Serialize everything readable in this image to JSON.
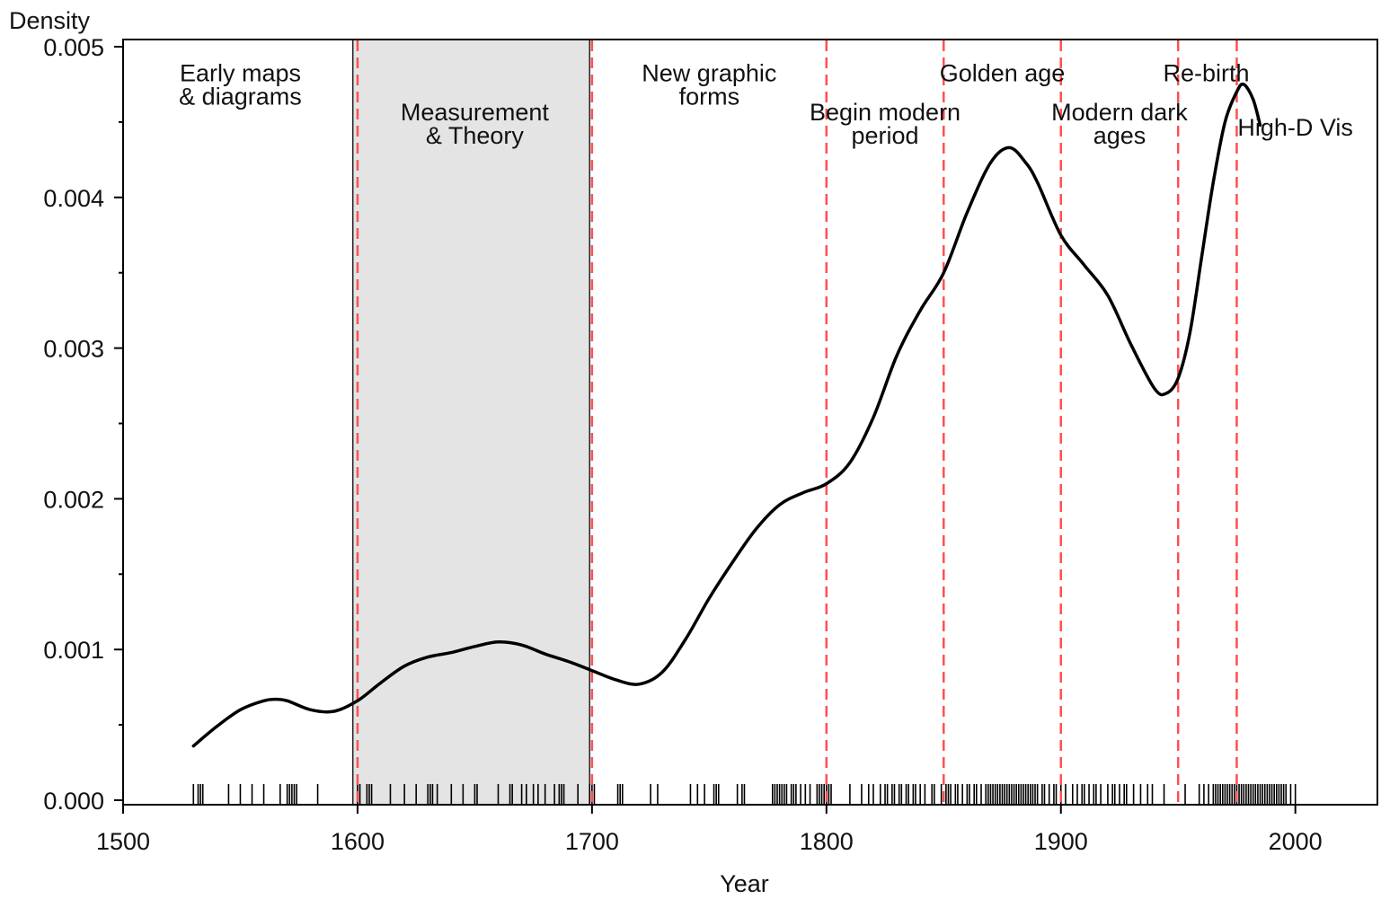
{
  "chart_data": {
    "type": "line",
    "xlabel": "Year",
    "ylabel": "Density",
    "xlim": [
      1500,
      2035
    ],
    "ylim": [
      0,
      0.005
    ],
    "x_ticks": [
      "1500",
      "1600",
      "1700",
      "1800",
      "1900",
      "2000"
    ],
    "x_tick_values": [
      1500,
      1600,
      1700,
      1800,
      1900,
      2000
    ],
    "y_ticks": [
      "0.000",
      "0.001",
      "0.002",
      "0.003",
      "0.004",
      "0.005"
    ],
    "y_tick_values": [
      0,
      0.001,
      0.002,
      0.003,
      0.004,
      0.005
    ],
    "y_minor_ticks": [
      0.0005,
      0.0015,
      0.0025,
      0.0035,
      0.0045
    ],
    "grid": false,
    "shaded_region": {
      "x_start": 1598,
      "x_end": 1699,
      "color": "#e4e4e4"
    },
    "period_boundaries": [
      1600,
      1700,
      1800,
      1850,
      1900,
      1950,
      1975
    ],
    "boundary_color": "#ff5050",
    "curve_color": "#000000",
    "period_labels": [
      {
        "lines": [
          "Early maps",
          "& diagrams"
        ],
        "x": 1550,
        "y": 0.00477
      },
      {
        "lines": [
          "Measurement",
          "& Theory"
        ],
        "x": 1650,
        "y": 0.00451
      },
      {
        "lines": [
          "New graphic",
          "forms"
        ],
        "x": 1750,
        "y": 0.00477
      },
      {
        "lines": [
          "Begin modern",
          "period"
        ],
        "x": 1825,
        "y": 0.00451
      },
      {
        "lines": [
          "Golden age"
        ],
        "x": 1875,
        "y": 0.00477
      },
      {
        "lines": [
          "Modern dark",
          "ages"
        ],
        "x": 1925,
        "y": 0.00451
      },
      {
        "lines": [
          "Re-birth"
        ],
        "x": 1962,
        "y": 0.00477
      },
      {
        "lines": [
          "High-D Vis"
        ],
        "x": 2000,
        "y": 0.00441
      }
    ],
    "series": [
      {
        "x": [
          1530,
          1540,
          1550,
          1560,
          1565,
          1570,
          1580,
          1590,
          1600,
          1610,
          1620,
          1630,
          1640,
          1650,
          1660,
          1670,
          1680,
          1690,
          1700,
          1710,
          1720,
          1730,
          1740,
          1750,
          1760,
          1770,
          1780,
          1790,
          1800,
          1810,
          1820,
          1830,
          1840,
          1850,
          1860,
          1870,
          1878,
          1885,
          1890,
          1900,
          1910,
          1920,
          1930,
          1940,
          1945,
          1950,
          1955,
          1960,
          1965,
          1970,
          1975,
          1978,
          1982,
          1985
        ],
        "y": [
          0.00036,
          0.00049,
          0.0006,
          0.00066,
          0.00067,
          0.00066,
          0.0006,
          0.00059,
          0.00066,
          0.00078,
          0.00089,
          0.00095,
          0.00098,
          0.00102,
          0.00105,
          0.00103,
          0.00097,
          0.00092,
          0.00086,
          0.0008,
          0.00077,
          0.00085,
          0.00107,
          0.00134,
          0.00158,
          0.0018,
          0.00196,
          0.00204,
          0.0021,
          0.00224,
          0.00254,
          0.00295,
          0.00325,
          0.0035,
          0.0039,
          0.00423,
          0.00433,
          0.00423,
          0.0041,
          0.00375,
          0.00355,
          0.00335,
          0.00302,
          0.00273,
          0.0027,
          0.0028,
          0.0031,
          0.0036,
          0.0041,
          0.0045,
          0.0047,
          0.00475,
          0.00465,
          0.00448
        ]
      }
    ],
    "rug_years": [
      1530,
      1532,
      1533,
      1534,
      1545,
      1550,
      1555,
      1560,
      1567,
      1570,
      1571,
      1572,
      1573,
      1574,
      1583,
      1600,
      1601,
      1604,
      1605,
      1606,
      1614,
      1620,
      1625,
      1630,
      1631,
      1632,
      1634,
      1640,
      1645,
      1650,
      1651,
      1660,
      1665,
      1666,
      1670,
      1672,
      1675,
      1677,
      1680,
      1684,
      1686,
      1687,
      1688,
      1694,
      1699,
      1700,
      1701,
      1711,
      1712,
      1713,
      1725,
      1728,
      1742,
      1745,
      1748,
      1752,
      1753,
      1754,
      1762,
      1764,
      1765,
      1777,
      1778,
      1779,
      1780,
      1781,
      1782,
      1783,
      1785,
      1786,
      1787,
      1789,
      1791,
      1793,
      1796,
      1797,
      1798,
      1799,
      1800,
      1801,
      1802,
      1810,
      1815,
      1818,
      1820,
      1823,
      1825,
      1826,
      1828,
      1829,
      1831,
      1832,
      1834,
      1835,
      1837,
      1838,
      1840,
      1842,
      1845,
      1846,
      1849,
      1851,
      1852,
      1853,
      1855,
      1856,
      1858,
      1860,
      1861,
      1863,
      1864,
      1866,
      1868,
      1869,
      1870,
      1871,
      1872,
      1873,
      1874,
      1875,
      1876,
      1877,
      1878,
      1879,
      1880,
      1881,
      1882,
      1883,
      1884,
      1885,
      1886,
      1887,
      1888,
      1889,
      1890,
      1892,
      1893,
      1895,
      1897,
      1898,
      1900,
      1902,
      1905,
      1907,
      1909,
      1910,
      1912,
      1914,
      1915,
      1917,
      1920,
      1922,
      1923,
      1925,
      1927,
      1928,
      1931,
      1934,
      1937,
      1939,
      1944,
      1953,
      1959,
      1961,
      1963,
      1965,
      1966,
      1967,
      1968,
      1969,
      1970,
      1971,
      1972,
      1973,
      1974,
      1975,
      1976,
      1977,
      1978,
      1979,
      1980,
      1981,
      1982,
      1983,
      1984,
      1985,
      1986,
      1987,
      1988,
      1989,
      1990,
      1991,
      1992,
      1993,
      1994,
      1995,
      1996,
      1998,
      2000
    ]
  }
}
